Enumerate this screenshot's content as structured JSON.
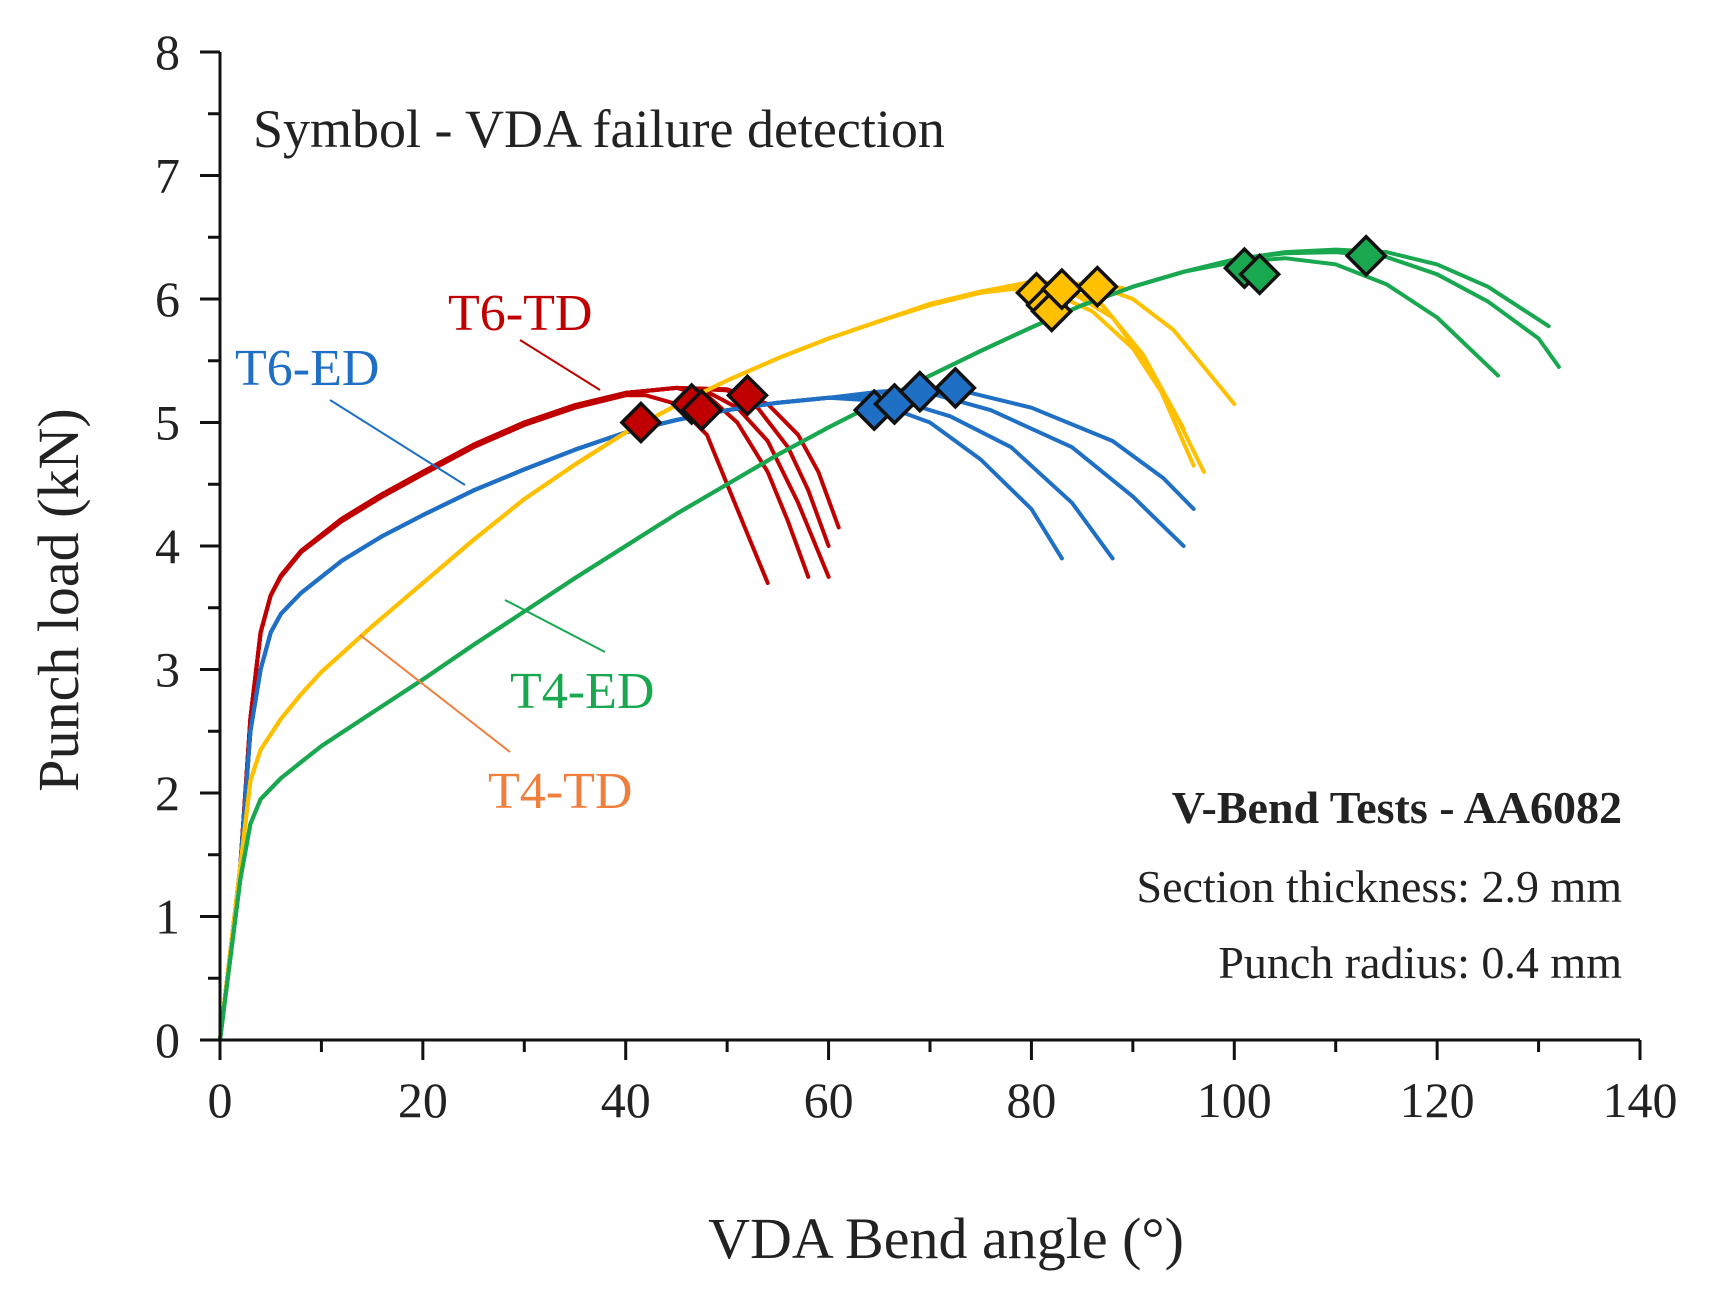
{
  "chart_data": {
    "type": "line",
    "xlabel": "VDA Bend angle (°)",
    "ylabel": "Punch load (kN)",
    "xlim": [
      0,
      140
    ],
    "ylim": [
      0,
      8
    ],
    "xticks": [
      0,
      20,
      40,
      60,
      80,
      100,
      120,
      140
    ],
    "yticks": [
      0,
      1,
      2,
      3,
      4,
      5,
      6,
      7,
      8
    ],
    "grid": false,
    "annotation": "Symbol - VDA failure detection",
    "info": {
      "title": "V-Bend Tests - AA6082",
      "line1": "Section thickness: 2.9 mm",
      "line2": "Punch radius: 0.4 mm"
    },
    "series": [
      {
        "name": "T6-TD",
        "color": "#C00000",
        "label_color": "#C00000",
        "curves": [
          {
            "x": [
              0,
              2,
              3,
              4,
              5,
              6,
              8,
              12,
              16,
              20,
              25,
              30,
              35,
              40,
              42,
              45,
              48,
              50,
              52,
              54
            ],
            "y": [
              0,
              1.4,
              2.6,
              3.3,
              3.6,
              3.75,
              3.95,
              4.2,
              4.4,
              4.58,
              4.8,
              4.98,
              5.12,
              5.22,
              5.22,
              5.15,
              4.9,
              4.5,
              4.1,
              3.7
            ],
            "failure": [
              41.5,
              5.0
            ]
          },
          {
            "x": [
              0,
              2,
              3,
              4,
              5,
              6,
              8,
              12,
              16,
              20,
              25,
              30,
              35,
              40,
              45,
              48,
              51,
              54,
              56,
              58
            ],
            "y": [
              0,
              1.4,
              2.6,
              3.3,
              3.6,
              3.76,
              3.96,
              4.22,
              4.42,
              4.6,
              4.82,
              5.0,
              5.14,
              5.24,
              5.28,
              5.22,
              5.0,
              4.6,
              4.2,
              3.75
            ],
            "failure": [
              46.5,
              5.15
            ]
          },
          {
            "x": [
              0,
              2,
              3,
              4,
              5,
              6,
              8,
              12,
              16,
              20,
              25,
              30,
              35,
              40,
              45,
              48,
              51,
              54,
              57,
              60
            ],
            "y": [
              0,
              1.4,
              2.6,
              3.3,
              3.6,
              3.76,
              3.96,
              4.22,
              4.42,
              4.6,
              4.82,
              5.0,
              5.14,
              5.24,
              5.28,
              5.25,
              5.12,
              4.85,
              4.35,
              3.75
            ],
            "failure": [
              47.5,
              5.1
            ]
          },
          {
            "x": [
              0,
              2,
              3,
              4,
              5,
              6,
              8,
              12,
              16,
              20,
              25,
              30,
              35,
              40,
              45,
              50,
              53,
              56,
              58,
              60
            ],
            "y": [
              0,
              1.4,
              2.6,
              3.3,
              3.6,
              3.76,
              3.96,
              4.22,
              4.42,
              4.6,
              4.82,
              5.0,
              5.14,
              5.24,
              5.28,
              5.26,
              5.12,
              4.8,
              4.45,
              4.0
            ],
            "failure": [
              52.0,
              5.22
            ]
          },
          {
            "x": [
              0,
              2,
              3,
              4,
              5,
              6,
              8,
              12,
              16,
              20,
              25,
              30,
              35,
              40,
              45,
              50,
              54,
              57,
              59,
              61
            ],
            "y": [
              0,
              1.4,
              2.6,
              3.3,
              3.6,
              3.76,
              3.96,
              4.22,
              4.42,
              4.6,
              4.82,
              5.0,
              5.14,
              5.24,
              5.28,
              5.27,
              5.15,
              4.9,
              4.6,
              4.15
            ],
            "failure": null
          }
        ]
      },
      {
        "name": "T6-ED",
        "color": "#1F6FC5",
        "label_color": "#1F6FC5",
        "curves": [
          {
            "x": [
              0,
              2,
              3,
              4,
              5,
              6,
              8,
              12,
              16,
              20,
              25,
              30,
              35,
              40,
              45,
              50,
              55,
              60,
              64,
              70,
              75,
              80,
              83
            ],
            "y": [
              0,
              1.4,
              2.5,
              3.0,
              3.3,
              3.45,
              3.62,
              3.88,
              4.08,
              4.25,
              4.45,
              4.62,
              4.78,
              4.92,
              5.02,
              5.1,
              5.16,
              5.2,
              5.18,
              5.0,
              4.7,
              4.3,
              3.9
            ],
            "failure": [
              64.5,
              5.1
            ]
          },
          {
            "x": [
              0,
              2,
              3,
              4,
              5,
              6,
              8,
              12,
              16,
              20,
              25,
              30,
              35,
              40,
              45,
              50,
              55,
              60,
              66,
              72,
              78,
              84,
              88
            ],
            "y": [
              0,
              1.4,
              2.5,
              3.0,
              3.3,
              3.45,
              3.62,
              3.88,
              4.08,
              4.25,
              4.45,
              4.62,
              4.78,
              4.92,
              5.02,
              5.1,
              5.16,
              5.2,
              5.2,
              5.05,
              4.8,
              4.35,
              3.9
            ],
            "failure": [
              66.5,
              5.15
            ]
          },
          {
            "x": [
              0,
              2,
              3,
              4,
              5,
              6,
              8,
              12,
              16,
              20,
              25,
              30,
              35,
              40,
              45,
              50,
              55,
              60,
              65,
              69,
              76,
              84,
              90,
              95
            ],
            "y": [
              0,
              1.4,
              2.5,
              3.0,
              3.3,
              3.45,
              3.62,
              3.88,
              4.08,
              4.25,
              4.45,
              4.62,
              4.78,
              4.92,
              5.02,
              5.1,
              5.16,
              5.2,
              5.24,
              5.26,
              5.1,
              4.8,
              4.4,
              4.0
            ],
            "failure": [
              69.0,
              5.25
            ]
          },
          {
            "x": [
              0,
              2,
              3,
              4,
              5,
              6,
              8,
              12,
              16,
              20,
              25,
              30,
              35,
              40,
              45,
              50,
              55,
              60,
              65,
              72,
              80,
              88,
              93,
              96
            ],
            "y": [
              0,
              1.4,
              2.5,
              3.0,
              3.3,
              3.45,
              3.62,
              3.88,
              4.08,
              4.25,
              4.45,
              4.62,
              4.78,
              4.92,
              5.02,
              5.1,
              5.16,
              5.2,
              5.25,
              5.28,
              5.12,
              4.85,
              4.55,
              4.3
            ],
            "failure": [
              72.5,
              5.28
            ]
          }
        ]
      },
      {
        "name": "T4-TD",
        "color": "#FFC000",
        "label_color": "#F07E3C",
        "curves": [
          {
            "x": [
              0,
              2,
              3,
              4,
              6,
              8,
              10,
              15,
              20,
              25,
              30,
              35,
              40,
              45,
              50,
              55,
              60,
              65,
              70,
              75,
              78,
              82,
              86,
              90,
              94,
              97
            ],
            "y": [
              0,
              1.4,
              2.1,
              2.35,
              2.6,
              2.8,
              2.98,
              3.35,
              3.7,
              4.05,
              4.38,
              4.66,
              4.92,
              5.14,
              5.34,
              5.52,
              5.68,
              5.82,
              5.95,
              6.05,
              6.08,
              6.05,
              5.9,
              5.6,
              5.1,
              4.6
            ],
            "failure": [
              80.5,
              6.05
            ]
          },
          {
            "x": [
              0,
              2,
              3,
              4,
              6,
              8,
              10,
              15,
              20,
              25,
              30,
              35,
              40,
              45,
              50,
              55,
              60,
              65,
              70,
              75,
              80,
              84,
              88,
              92,
              96
            ],
            "y": [
              0,
              1.4,
              2.1,
              2.35,
              2.6,
              2.8,
              2.98,
              3.35,
              3.7,
              4.05,
              4.38,
              4.66,
              4.92,
              5.14,
              5.34,
              5.52,
              5.68,
              5.82,
              5.96,
              6.06,
              6.1,
              6.05,
              5.85,
              5.4,
              4.65
            ],
            "failure": [
              81.5,
              5.95
            ]
          },
          {
            "x": [
              0,
              2,
              3,
              4,
              6,
              8,
              10,
              15,
              20,
              25,
              30,
              35,
              40,
              45,
              50,
              55,
              60,
              65,
              70,
              75,
              80,
              83,
              87,
              91,
              95
            ],
            "y": [
              0,
              1.4,
              2.1,
              2.35,
              2.6,
              2.8,
              2.98,
              3.35,
              3.7,
              4.05,
              4.38,
              4.66,
              4.92,
              5.14,
              5.34,
              5.52,
              5.68,
              5.82,
              5.96,
              6.06,
              6.12,
              6.1,
              5.95,
              5.55,
              4.95
            ],
            "failure": [
              82.0,
              5.9
            ]
          },
          {
            "x": [
              0,
              2,
              3,
              4,
              6,
              8,
              10,
              15,
              20,
              25,
              30,
              35,
              40,
              45,
              50,
              55,
              60,
              65,
              70,
              75,
              80,
              86,
              90,
              94,
              97,
              100
            ],
            "y": [
              0,
              1.4,
              2.1,
              2.35,
              2.6,
              2.8,
              2.98,
              3.35,
              3.7,
              4.05,
              4.38,
              4.66,
              4.92,
              5.14,
              5.34,
              5.52,
              5.68,
              5.82,
              5.96,
              6.06,
              6.14,
              6.12,
              6.0,
              5.75,
              5.45,
              5.15
            ],
            "failure": [
              83.0,
              6.08
            ]
          },
          {
            "x": [
              87,
              89
            ],
            "y": [
              6.1,
              6.09
            ],
            "failure": [
              86.5,
              6.1
            ]
          }
        ]
      },
      {
        "name": "T4-ED",
        "color": "#19A84F",
        "label_color": "#19A84F",
        "curves": [
          {
            "x": [
              0,
              2,
              3,
              4,
              6,
              8,
              10,
              15,
              20,
              25,
              30,
              35,
              40,
              45,
              50,
              55,
              60,
              65,
              70,
              75,
              80,
              85,
              90,
              95,
              100,
              105,
              110,
              115,
              120,
              125,
              130,
              132
            ],
            "y": [
              0,
              1.3,
              1.75,
              1.95,
              2.12,
              2.25,
              2.38,
              2.65,
              2.92,
              3.2,
              3.47,
              3.74,
              4.0,
              4.26,
              4.5,
              4.74,
              4.96,
              5.17,
              5.38,
              5.58,
              5.77,
              5.95,
              6.1,
              6.22,
              6.32,
              6.37,
              6.38,
              6.34,
              6.2,
              5.98,
              5.68,
              5.45
            ],
            "failure": [
              101.0,
              6.25
            ]
          },
          {
            "x": [
              0,
              2,
              3,
              4,
              6,
              8,
              10,
              15,
              20,
              25,
              30,
              35,
              40,
              45,
              50,
              55,
              60,
              65,
              70,
              75,
              80,
              85,
              90,
              95,
              100,
              105,
              110,
              115,
              120,
              126
            ],
            "y": [
              0,
              1.3,
              1.75,
              1.95,
              2.12,
              2.25,
              2.38,
              2.65,
              2.92,
              3.2,
              3.47,
              3.74,
              4.0,
              4.26,
              4.5,
              4.74,
              4.96,
              5.17,
              5.38,
              5.58,
              5.77,
              5.95,
              6.1,
              6.22,
              6.3,
              6.33,
              6.28,
              6.12,
              5.85,
              5.38
            ],
            "failure": [
              102.5,
              6.2
            ]
          },
          {
            "x": [
              0,
              2,
              3,
              4,
              6,
              8,
              10,
              15,
              20,
              25,
              30,
              35,
              40,
              45,
              50,
              55,
              60,
              65,
              70,
              75,
              80,
              85,
              90,
              95,
              100,
              105,
              110,
              115,
              120,
              125,
              131
            ],
            "y": [
              0,
              1.3,
              1.75,
              1.95,
              2.12,
              2.25,
              2.38,
              2.65,
              2.92,
              3.2,
              3.47,
              3.74,
              4.0,
              4.26,
              4.5,
              4.74,
              4.96,
              5.17,
              5.38,
              5.58,
              5.77,
              5.95,
              6.1,
              6.22,
              6.32,
              6.38,
              6.4,
              6.38,
              6.28,
              6.1,
              5.78
            ],
            "failure": [
              113.0,
              6.35
            ]
          }
        ]
      }
    ]
  }
}
